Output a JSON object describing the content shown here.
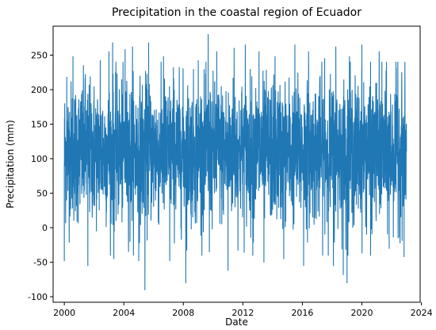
{
  "chart_data": {
    "type": "line",
    "title": "Precipitation in the coastal region of Ecuador",
    "xlabel": "Date",
    "ylabel": "Precipitation (mm)",
    "x_range": [
      "1999-04-01",
      "2023-12-01"
    ],
    "y_range": [
      -108,
      292
    ],
    "x_ticks": [
      "2000",
      "2004",
      "2008",
      "2012",
      "2016",
      "2020",
      "2024"
    ],
    "y_ticks": [
      -100,
      -50,
      0,
      50,
      100,
      150,
      200,
      250
    ],
    "grid": false,
    "legend": "none",
    "series": [
      {
        "color": "#1f77b4",
        "x_start": "2000-01-01",
        "x_end": "2022-12-31",
        "frequency": "daily",
        "center": 110,
        "typical_range": [
          10,
          210
        ],
        "min": -90,
        "max": 280,
        "extremes": [
          {
            "date": "2000-01-01",
            "value": -48
          },
          {
            "date": "2000-03-01",
            "value": 218
          },
          {
            "date": "2000-08-01",
            "value": 248
          },
          {
            "date": "2001-06-01",
            "value": 222
          },
          {
            "date": "2001-08-01",
            "value": -55
          },
          {
            "date": "2002-06-01",
            "value": 242
          },
          {
            "date": "2003-01-01",
            "value": 255
          },
          {
            "date": "2003-04-01",
            "value": 268
          },
          {
            "date": "2003-05-01",
            "value": -45
          },
          {
            "date": "2004-02-01",
            "value": 258
          },
          {
            "date": "2004-06-01",
            "value": -20
          },
          {
            "date": "2004-08-01",
            "value": 262
          },
          {
            "date": "2005-01-01",
            "value": -48
          },
          {
            "date": "2005-06-01",
            "value": -90
          },
          {
            "date": "2005-09-01",
            "value": 268
          },
          {
            "date": "2006-09-01",
            "value": 248
          },
          {
            "date": "2007-02-01",
            "value": -48
          },
          {
            "date": "2007-05-01",
            "value": 232
          },
          {
            "date": "2008-03-01",
            "value": -80
          },
          {
            "date": "2009-01-01",
            "value": 242
          },
          {
            "date": "2009-09-01",
            "value": 280
          },
          {
            "date": "2009-10-01",
            "value": -35
          },
          {
            "date": "2010-04-01",
            "value": 255
          },
          {
            "date": "2011-01-01",
            "value": -62
          },
          {
            "date": "2011-06-01",
            "value": 260
          },
          {
            "date": "2012-03-01",
            "value": 265
          },
          {
            "date": "2012-09-01",
            "value": -40
          },
          {
            "date": "2013-02-01",
            "value": 255
          },
          {
            "date": "2013-06-01",
            "value": -50
          },
          {
            "date": "2014-03-01",
            "value": 248
          },
          {
            "date": "2014-10-01",
            "value": -45
          },
          {
            "date": "2015-07-01",
            "value": 265
          },
          {
            "date": "2016-02-01",
            "value": -55
          },
          {
            "date": "2016-06-01",
            "value": 255
          },
          {
            "date": "2017-07-01",
            "value": 245
          },
          {
            "date": "2018-02-01",
            "value": -55
          },
          {
            "date": "2018-04-01",
            "value": 262
          },
          {
            "date": "2018-10-01",
            "value": -68
          },
          {
            "date": "2019-01-01",
            "value": -80
          },
          {
            "date": "2019-03-01",
            "value": 248
          },
          {
            "date": "2020-01-01",
            "value": 265
          },
          {
            "date": "2020-08-01",
            "value": -40
          },
          {
            "date": "2021-03-01",
            "value": 255
          },
          {
            "date": "2021-11-01",
            "value": -30
          },
          {
            "date": "2022-06-01",
            "value": 240
          },
          {
            "date": "2022-11-01",
            "value": -42
          }
        ]
      }
    ]
  }
}
